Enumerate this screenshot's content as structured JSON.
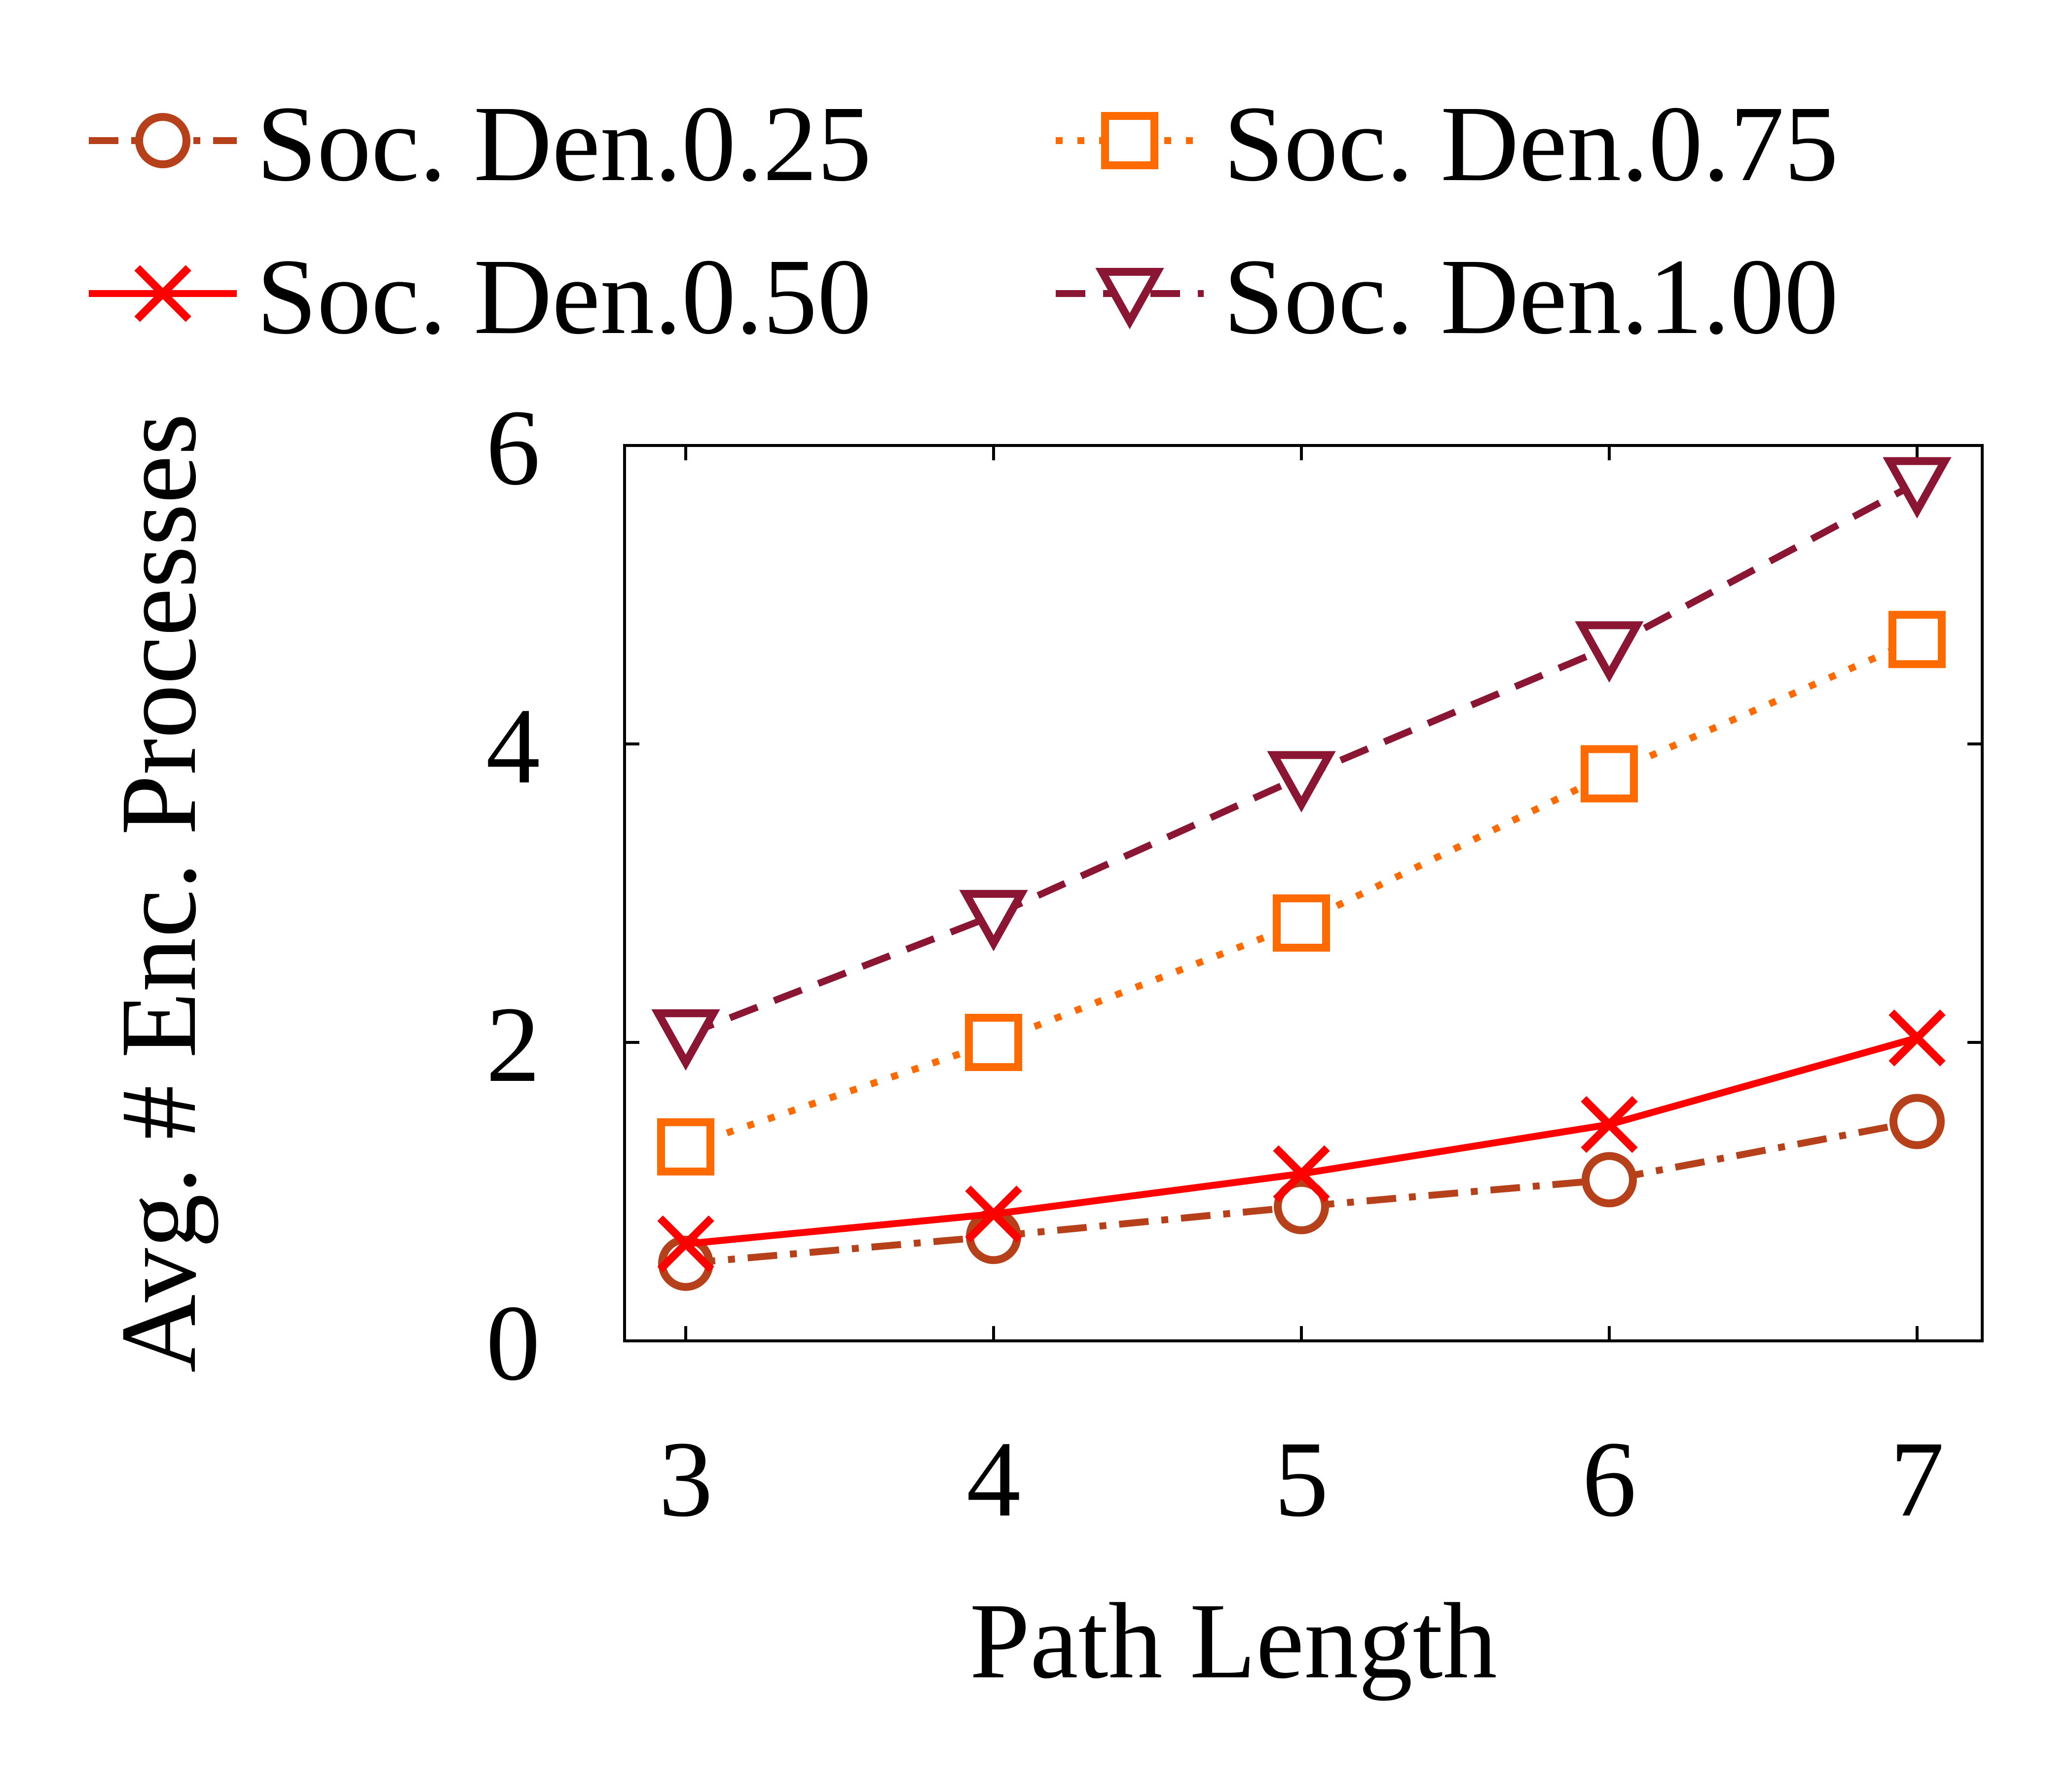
{
  "chart_data": {
    "type": "line",
    "xlabel": "Path Length",
    "ylabel": "Avg. # Enc. Processes",
    "x": [
      3,
      4,
      5,
      6,
      7
    ],
    "xticks": [
      "3",
      "4",
      "5",
      "6",
      "7"
    ],
    "yticks": [
      "0",
      "2",
      "4",
      "6"
    ],
    "ylim": [
      0,
      6
    ],
    "grid": false,
    "legend_position": "top",
    "series": [
      {
        "name": "Soc. Den.0.25",
        "values": [
          0.52,
          0.7,
          0.9,
          1.08,
          1.47
        ],
        "color": "#b5401a",
        "marker": "circle",
        "dash": "dash-dot"
      },
      {
        "name": "Soc. Den.0.50",
        "values": [
          0.65,
          0.85,
          1.12,
          1.45,
          2.03
        ],
        "color": "#ff0000",
        "marker": "x",
        "dash": "solid"
      },
      {
        "name": "Soc. Den.0.75",
        "values": [
          1.3,
          2.0,
          2.8,
          3.8,
          4.7
        ],
        "color": "#ff6a00",
        "marker": "square",
        "dash": "dotted"
      },
      {
        "name": "Soc. Den.1.00",
        "values": [
          2.05,
          2.85,
          3.78,
          4.65,
          5.75
        ],
        "color": "#8b1634",
        "marker": "triangle-down",
        "dash": "dashed"
      }
    ]
  }
}
